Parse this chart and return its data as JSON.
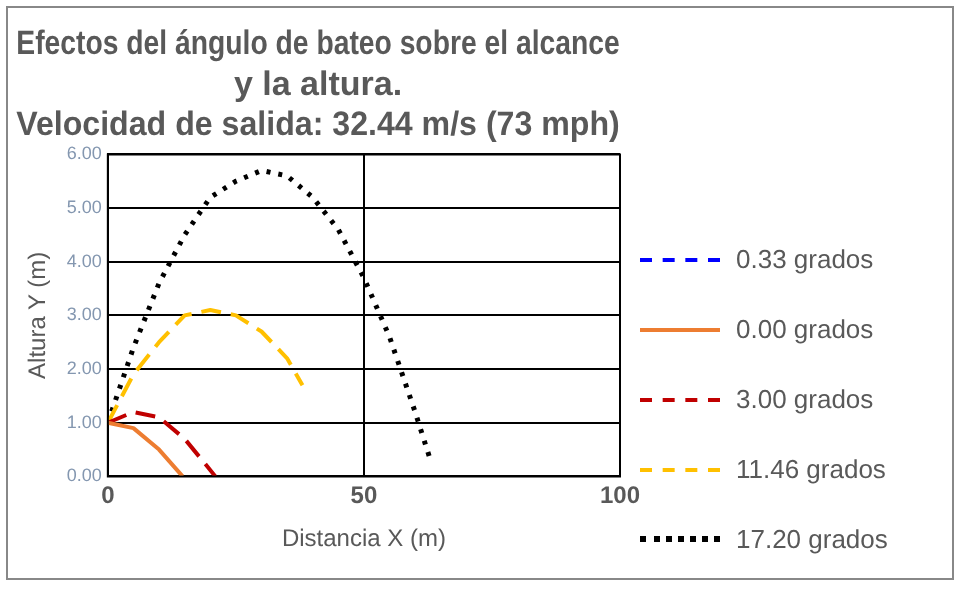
{
  "chart_data": {
    "type": "line",
    "title": "Efectos del ángulo de bateo sobre el alcance\ny la altura.\nVelocidad de salida: 32.44 m/s (73 mph)",
    "xlabel": "Distancia X (m)",
    "ylabel": "Altura Y (m)",
    "xlim": [
      0,
      100
    ],
    "xticks": [
      0,
      50,
      100
    ],
    "ylim": [
      0,
      6
    ],
    "yticks": [
      {
        "value": 0,
        "label": "0.00"
      },
      {
        "value": 1,
        "label": "1.00"
      },
      {
        "value": 2,
        "label": "2.00"
      },
      {
        "value": 3,
        "label": "3.00"
      },
      {
        "value": 4,
        "label": "4.00"
      },
      {
        "value": 5,
        "label": "5.00"
      },
      {
        "value": 6,
        "label": "6.00"
      }
    ],
    "grid": true,
    "legend": "right",
    "marker": "none",
    "series": [
      {
        "name": "0.33 grados",
        "color": "#0000ff",
        "line_style": "dashed"
      },
      {
        "name": "0.00 grados",
        "color": "#ed7d31",
        "line_style": "solid",
        "x": [
          0,
          5,
          10,
          14.6
        ],
        "values": [
          1,
          0.9,
          0.5,
          0
        ]
      },
      {
        "name": "3.00 grados",
        "color": "#c00000",
        "line_style": "dashed",
        "x": [
          0,
          5,
          10,
          15,
          21
        ],
        "values": [
          1,
          1.2,
          1.1,
          0.7,
          0
        ]
      },
      {
        "name": "11.46 grados",
        "color": "#ffc000",
        "line_style": "dashed",
        "x": [
          0,
          5,
          10,
          15,
          20,
          25,
          30,
          35,
          38
        ],
        "values": [
          1,
          1.9,
          2.5,
          3,
          3.1,
          3,
          2.7,
          2.2,
          1.7
        ]
      },
      {
        "name": "17.20 grados",
        "color": "#000000",
        "line_style": "dotted",
        "x": [
          0,
          5,
          10,
          15,
          20,
          25,
          30,
          35,
          40,
          45,
          50,
          55,
          60,
          63
        ],
        "values": [
          1,
          2.4,
          3.6,
          4.5,
          5.2,
          5.5,
          5.7,
          5.6,
          5.2,
          4.6,
          3.7,
          2.6,
          1.2,
          0.3
        ]
      }
    ]
  }
}
